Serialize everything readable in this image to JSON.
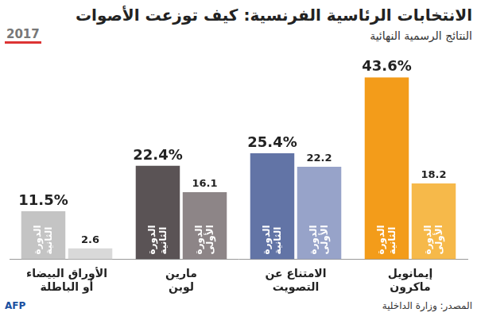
{
  "logo_text": "2017",
  "source": "المصدر: وزارة الداخلية",
  "credit": "AFP",
  "chart_data": {
    "type": "bar",
    "title": "الانتخابات الرئاسية الفرنسية: كيف توزعت الأصوات",
    "subtitle": "النتائج الرسمية النهائية",
    "categories": [
      "الأوراق البيضاء\nأو الباطلة",
      "مارين\nلوبن",
      "الامتناع عن\nالتصويت",
      "إيمانويل\nماكرون"
    ],
    "series": [
      {
        "name": "الدورة الثانية",
        "colors": [
          "#c4c4c4",
          "#5a5355",
          "#6274a6",
          "#f39c1a"
        ],
        "values": [
          11.5,
          22.4,
          25.4,
          43.6
        ],
        "value_labels": [
          "11.5%",
          "22.4%",
          "25.4%",
          "43.6%"
        ]
      },
      {
        "name": "الدورة الأولى",
        "colors": [
          "#d9d9d9",
          "#8d8587",
          "#97a3c9",
          "#f6b94a"
        ],
        "values": [
          2.6,
          16.1,
          22.2,
          18.2
        ]
      }
    ],
    "ylim": [
      0,
      50
    ],
    "grid": false,
    "tick_labels": "x",
    "data_labels": true
  }
}
